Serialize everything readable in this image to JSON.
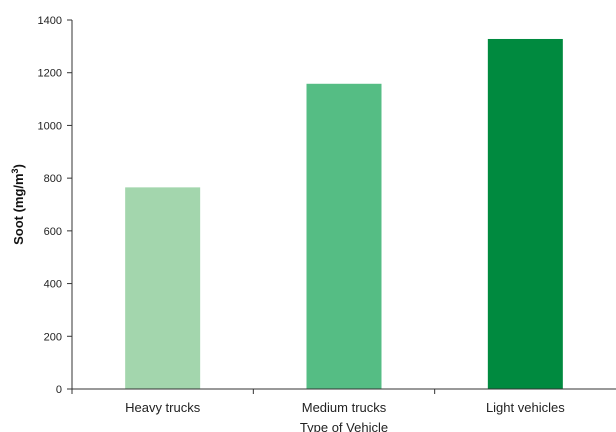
{
  "chart_data": {
    "type": "bar",
    "categories": [
      "Heavy trucks",
      "Medium trucks",
      "Light vehicles"
    ],
    "values": [
      765,
      1158,
      1328
    ],
    "bar_colors": [
      "#a3d6ad",
      "#55bd84",
      "#008a3f"
    ],
    "xlabel": "Type of Vehicle",
    "ylabel": {
      "main": "Soot (mg/m",
      "sup": "3",
      "end": ")"
    },
    "ylim": [
      0,
      1400
    ],
    "yticks": [
      0,
      200,
      400,
      600,
      800,
      1000,
      1200,
      1400
    ],
    "grid": false,
    "legend": "none"
  }
}
